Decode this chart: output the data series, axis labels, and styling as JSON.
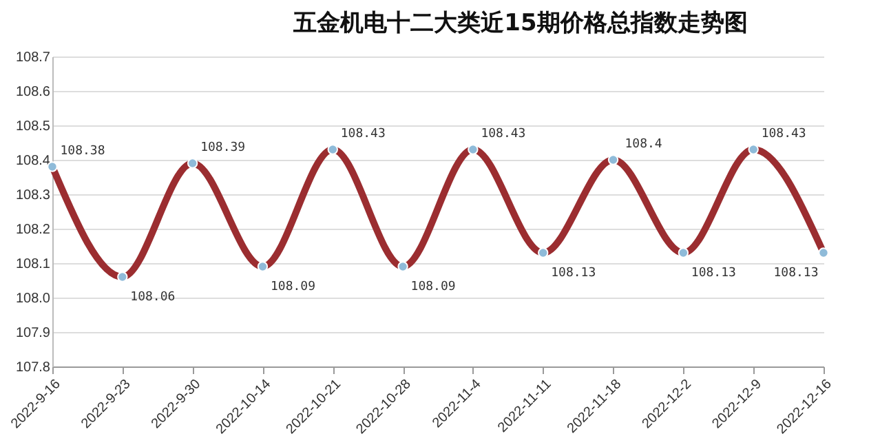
{
  "chart_data": {
    "type": "line",
    "title": "五金机电十二大类近15期价格总指数走势图",
    "categories": [
      "2022-9-16",
      "2022-9-23",
      "2022-9-30",
      "2022-10-14",
      "2022-10-21",
      "2022-10-28",
      "2022-11-4",
      "2022-11-11",
      "2022-11-18",
      "2022-12-2",
      "2022-12-9",
      "2022-12-16"
    ],
    "series": [
      {
        "color": "#9b2d30",
        "values": [
          108.38,
          108.06,
          108.39,
          108.09,
          108.43,
          108.09,
          108.43,
          108.13,
          108.4,
          108.13,
          108.43,
          108.13
        ]
      }
    ],
    "value_labels": [
      "108.38",
      "108.06",
      "108.39",
      "108.09",
      "108.43",
      "108.09",
      "108.43",
      "108.13",
      "108.4",
      "108.13",
      "108.43",
      "108.13"
    ],
    "ylim": [
      107.8,
      108.7
    ],
    "yticks": [
      107.8,
      107.9,
      {
        "value": 108,
        "label": "108.0"
      },
      108.1,
      108.2,
      108.3,
      108.4,
      108.5,
      108.6,
      108.7
    ],
    "grid": "y",
    "marker": "circle"
  }
}
